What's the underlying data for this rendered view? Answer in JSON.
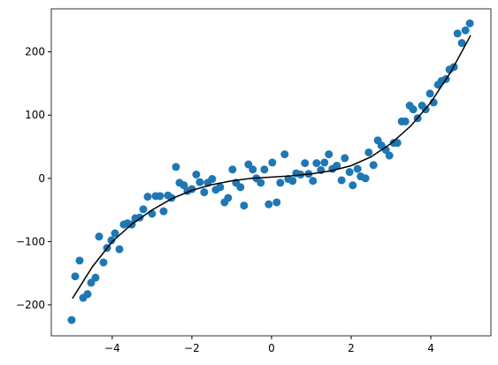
{
  "chart_data": {
    "type": "scatter",
    "xlim": [
      -5.53,
      5.51
    ],
    "ylim": [
      -249,
      268
    ],
    "xticks": [
      {
        "value": -4,
        "label": "−4"
      },
      {
        "value": -2,
        "label": "−2"
      },
      0,
      2,
      4
    ],
    "yticks": [
      {
        "value": -200,
        "label": "−200"
      },
      {
        "value": -100,
        "label": "−100"
      },
      0,
      100,
      200
    ],
    "series": [
      {
        "kind": "points",
        "color": "#1f77b4",
        "x": [
          -5.02,
          -4.93,
          -4.82,
          -4.73,
          -4.62,
          -4.53,
          -4.42,
          -4.33,
          -4.22,
          -4.13,
          -4.02,
          -3.93,
          -3.82,
          -3.71,
          -3.62,
          -3.51,
          -3.42,
          -3.31,
          -3.22,
          -3.11,
          -3.0,
          -2.91,
          -2.8,
          -2.71,
          -2.6,
          -2.51,
          -2.4,
          -2.31,
          -2.2,
          -2.11,
          -2.0,
          -1.89,
          -1.8,
          -1.69,
          -1.6,
          -1.49,
          -1.4,
          -1.29,
          -1.18,
          -1.09,
          -0.98,
          -0.89,
          -0.78,
          -0.69,
          -0.58,
          -0.47,
          -0.38,
          -0.27,
          -0.18,
          -0.07,
          0.02,
          0.13,
          0.22,
          0.33,
          0.42,
          0.53,
          0.62,
          0.73,
          0.84,
          0.93,
          1.04,
          1.13,
          1.24,
          1.33,
          1.44,
          1.53,
          1.64,
          1.76,
          1.84,
          1.96,
          2.04,
          2.16,
          2.24,
          2.36,
          2.44,
          2.56,
          2.67,
          2.76,
          2.87,
          2.96,
          3.07,
          3.16,
          3.27,
          3.36,
          3.47,
          3.56,
          3.67,
          3.78,
          3.87,
          3.98,
          4.07,
          4.18,
          4.27,
          4.38,
          4.47,
          4.58,
          4.67,
          4.78,
          4.87,
          4.98
        ],
        "values": [
          -224,
          -155,
          -130,
          -189,
          -183,
          -165,
          -157,
          -92,
          -133,
          -110,
          -98,
          -87,
          -112,
          -73,
          -71,
          -73,
          -63,
          -62,
          -49,
          -29,
          -56,
          -28,
          -28,
          -52,
          -27,
          -31,
          18,
          -7,
          -11,
          -20,
          -17,
          6,
          -6,
          -22,
          -7,
          -1,
          -18,
          -14,
          -38,
          -31,
          14,
          -7,
          -14,
          -43,
          22,
          14,
          0,
          -7,
          14,
          -41,
          25,
          -38,
          -7,
          38,
          -1,
          -4,
          8,
          6,
          24,
          7,
          -4,
          24,
          13,
          25,
          38,
          15,
          20,
          -3,
          32,
          10,
          -11,
          15,
          3,
          0,
          41,
          21,
          60,
          52,
          45,
          36,
          56,
          56,
          90,
          90,
          115,
          109,
          95,
          115,
          109,
          134,
          120,
          148,
          154,
          157,
          172,
          176,
          229,
          214,
          234,
          245
        ]
      },
      {
        "kind": "line",
        "color": "#000000",
        "x": [
          -5,
          -4.5,
          -4,
          -3.5,
          -3,
          -2.5,
          -2,
          -1.5,
          -1,
          -0.5,
          0,
          0.5,
          1,
          1.5,
          2,
          2.5,
          3,
          3.5,
          4,
          4.5,
          5
        ],
        "values": [
          -190,
          -140,
          -100,
          -72,
          -50,
          -32,
          -19,
          -10,
          -4,
          0,
          2,
          4,
          7,
          12,
          20,
          34,
          55,
          83,
          120,
          168,
          226
        ]
      }
    ]
  }
}
